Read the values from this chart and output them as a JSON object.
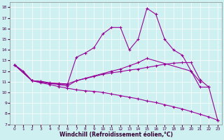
{
  "xlabel": "Windchill (Refroidissement éolien,°C)",
  "bg_color": "#cff0f0",
  "line_color": "#990099",
  "ylim": [
    7,
    18.5
  ],
  "xlim": [
    -0.5,
    23.5
  ],
  "yticks": [
    7,
    8,
    9,
    10,
    11,
    12,
    13,
    14,
    15,
    16,
    17,
    18
  ],
  "xticks": [
    0,
    1,
    2,
    3,
    4,
    5,
    6,
    7,
    8,
    9,
    10,
    11,
    12,
    13,
    14,
    15,
    16,
    17,
    18,
    19,
    20,
    21,
    22,
    23
  ],
  "series": [
    {
      "x": [
        0,
        1,
        2,
        3,
        4,
        5,
        6,
        7,
        8,
        9,
        10,
        11,
        12,
        13,
        14,
        15,
        16,
        17,
        18,
        19,
        20,
        21,
        22,
        23
      ],
      "y": [
        12.6,
        12.0,
        11.1,
        11.0,
        10.85,
        10.8,
        10.75,
        13.3,
        13.7,
        14.2,
        15.5,
        16.1,
        16.1,
        14.0,
        15.0,
        17.9,
        17.35,
        15.0,
        14.0,
        13.5,
        12.0,
        10.5,
        10.5,
        7.4
      ]
    },
    {
      "x": [
        0,
        2,
        3,
        4,
        5,
        6,
        7,
        11,
        12,
        13,
        14,
        15,
        20,
        21
      ],
      "y": [
        12.6,
        11.1,
        11.0,
        10.85,
        10.75,
        10.6,
        11.1,
        12.0,
        12.2,
        12.5,
        12.8,
        13.2,
        12.0,
        11.0
      ]
    },
    {
      "x": [
        0,
        2,
        3,
        4,
        5,
        6,
        7,
        8,
        9,
        10,
        11,
        12,
        13,
        14,
        15,
        16,
        17,
        18,
        19,
        20,
        21,
        22
      ],
      "y": [
        12.6,
        11.1,
        11.05,
        10.9,
        10.85,
        10.8,
        11.1,
        11.3,
        11.5,
        11.7,
        11.85,
        11.95,
        12.1,
        12.2,
        12.35,
        12.5,
        12.65,
        12.75,
        12.8,
        12.8,
        11.2,
        10.5
      ]
    },
    {
      "x": [
        0,
        2,
        3,
        4,
        5,
        6,
        7,
        8,
        9,
        10,
        11,
        12,
        13,
        14,
        15,
        16,
        17,
        18,
        19,
        20,
        21,
        22,
        23
      ],
      "y": [
        12.6,
        11.1,
        10.9,
        10.75,
        10.55,
        10.4,
        10.25,
        10.15,
        10.1,
        10.0,
        9.85,
        9.7,
        9.55,
        9.4,
        9.2,
        9.05,
        8.85,
        8.65,
        8.45,
        8.2,
        7.95,
        7.7,
        7.4
      ]
    }
  ]
}
